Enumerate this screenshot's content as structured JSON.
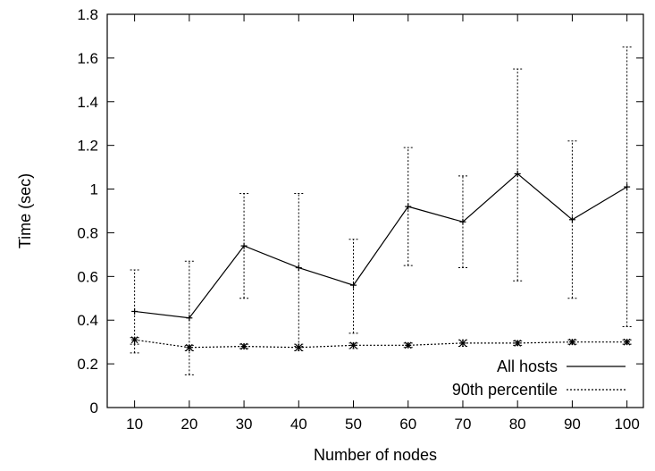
{
  "chart_data": {
    "type": "line",
    "xlabel": "Number of nodes",
    "ylabel": "Time (sec)",
    "x": [
      10,
      20,
      30,
      40,
      50,
      60,
      70,
      80,
      90,
      100
    ],
    "xticks": [
      "10",
      "20",
      "30",
      "40",
      "50",
      "60",
      "70",
      "80",
      "90",
      "100"
    ],
    "yticks": [
      "0",
      "0.2",
      "0.4",
      "0.6",
      "0.8",
      "1",
      "1.2",
      "1.4",
      "1.6",
      "1.8"
    ],
    "xlim": [
      5,
      103
    ],
    "ylim": [
      0,
      1.8
    ],
    "grid": false,
    "legend_position": "bottom-right",
    "series": [
      {
        "name": "All hosts",
        "style": "solid",
        "marker": "plus",
        "color": "#000000",
        "values": [
          0.44,
          0.41,
          0.74,
          0.64,
          0.56,
          0.92,
          0.85,
          1.07,
          0.86,
          1.01
        ],
        "err_low": [
          0.25,
          0.15,
          0.5,
          0.28,
          0.34,
          0.65,
          0.64,
          0.58,
          0.5,
          0.37
        ],
        "err_high": [
          0.63,
          0.67,
          0.98,
          0.98,
          0.77,
          1.19,
          1.06,
          1.55,
          1.22,
          1.65
        ]
      },
      {
        "name": "90th percentile",
        "style": "dotted",
        "marker": "star",
        "color": "#000000",
        "values": [
          0.31,
          0.275,
          0.28,
          0.275,
          0.285,
          0.285,
          0.295,
          0.295,
          0.3,
          0.3
        ],
        "err_low": [
          0.29,
          0.26,
          0.27,
          0.26,
          0.27,
          0.275,
          0.28,
          0.285,
          0.29,
          0.29
        ],
        "err_high": [
          0.32,
          0.285,
          0.29,
          0.29,
          0.295,
          0.295,
          0.31,
          0.305,
          0.31,
          0.31
        ]
      }
    ]
  }
}
